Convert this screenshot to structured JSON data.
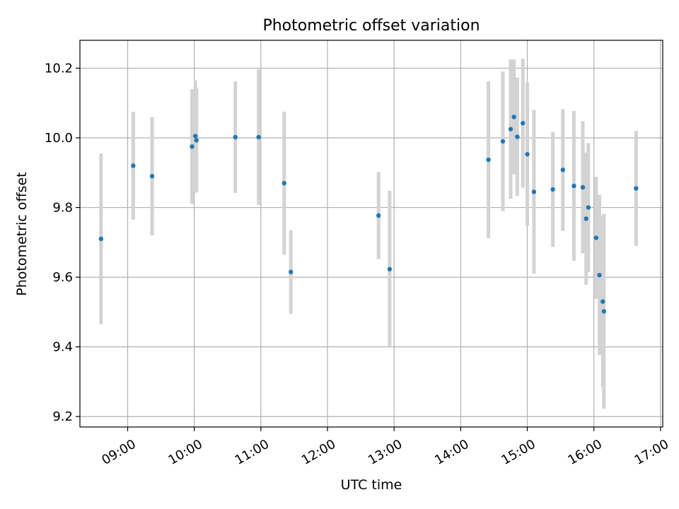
{
  "chart_data": {
    "type": "scatter",
    "title": "Photometric offset variation",
    "xlabel": "UTC time",
    "ylabel": "Photometric offset",
    "xlim": [
      "08:17",
      "17:02"
    ],
    "ylim": [
      9.17,
      10.28
    ],
    "grid": true,
    "x_ticks": [
      "09:00",
      "10:00",
      "11:00",
      "12:00",
      "13:00",
      "14:00",
      "15:00",
      "16:00",
      "17:00"
    ],
    "y_ticks": [
      "9.2",
      "9.4",
      "9.6",
      "9.8",
      "10.0",
      "10.2"
    ],
    "colors": {
      "point": "#1f77b4",
      "error_bar": "#d3d3d3",
      "grid": "#b0b0b0"
    },
    "points": [
      {
        "x": "08:36",
        "y": 9.71,
        "err": 0.245
      },
      {
        "x": "09:05",
        "y": 9.92,
        "err": 0.155
      },
      {
        "x": "09:22",
        "y": 9.89,
        "err": 0.17
      },
      {
        "x": "09:58",
        "y": 9.975,
        "err": 0.165
      },
      {
        "x": "10:01",
        "y": 10.005,
        "err": 0.16
      },
      {
        "x": "10:02",
        "y": 9.993,
        "err": 0.15
      },
      {
        "x": "10:37",
        "y": 10.002,
        "err": 0.16
      },
      {
        "x": "10:58",
        "y": 10.002,
        "err": 0.195
      },
      {
        "x": "11:21",
        "y": 9.87,
        "err": 0.205
      },
      {
        "x": "11:27",
        "y": 9.615,
        "err": 0.12
      },
      {
        "x": "12:46",
        "y": 9.777,
        "err": 0.125
      },
      {
        "x": "12:56",
        "y": 9.623,
        "err": 0.225
      },
      {
        "x": "14:25",
        "y": 9.937,
        "err": 0.225
      },
      {
        "x": "14:38",
        "y": 9.99,
        "err": 0.2
      },
      {
        "x": "14:45",
        "y": 10.025,
        "err": 0.2
      },
      {
        "x": "14:48",
        "y": 10.06,
        "err": 0.165
      },
      {
        "x": "14:51",
        "y": 10.003,
        "err": 0.17
      },
      {
        "x": "14:56",
        "y": 10.042,
        "err": 0.185
      },
      {
        "x": "15:00",
        "y": 9.953,
        "err": 0.205
      },
      {
        "x": "15:06",
        "y": 9.845,
        "err": 0.235
      },
      {
        "x": "15:23",
        "y": 9.852,
        "err": 0.165
      },
      {
        "x": "15:32",
        "y": 9.908,
        "err": 0.175
      },
      {
        "x": "15:42",
        "y": 9.862,
        "err": 0.215
      },
      {
        "x": "15:50",
        "y": 9.858,
        "err": 0.19
      },
      {
        "x": "15:53",
        "y": 9.768,
        "err": 0.19
      },
      {
        "x": "15:55",
        "y": 9.8,
        "err": 0.185
      },
      {
        "x": "16:02",
        "y": 9.713,
        "err": 0.175
      },
      {
        "x": "16:05",
        "y": 9.606,
        "err": 0.23
      },
      {
        "x": "16:08",
        "y": 9.53,
        "err": 0.245
      },
      {
        "x": "16:09",
        "y": 9.502,
        "err": 0.28
      },
      {
        "x": "16:38",
        "y": 9.855,
        "err": 0.165
      }
    ]
  }
}
